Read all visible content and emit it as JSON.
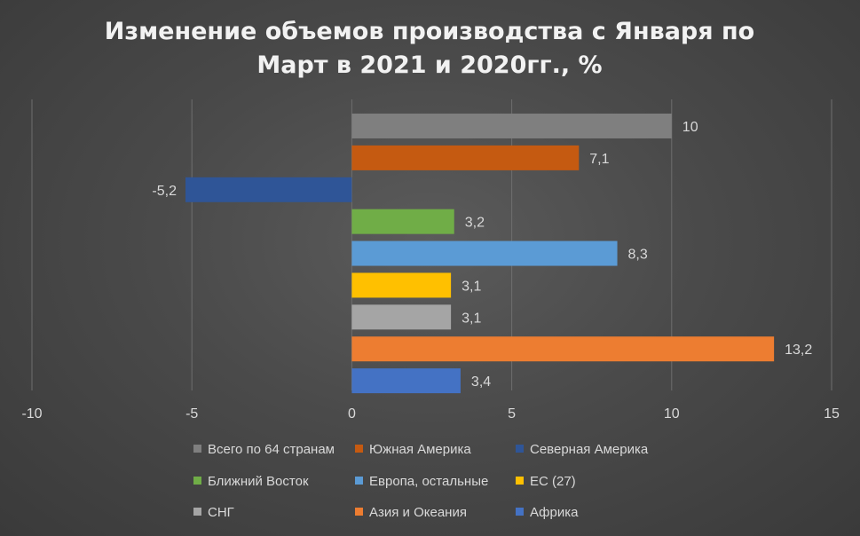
{
  "chart_data": {
    "type": "bar",
    "orientation": "horizontal",
    "title_lines": [
      "Изменение объемов производства  с Января по",
      "Март в 2021 и 2020гг., %"
    ],
    "xlabel": "",
    "ylabel": "",
    "xlim": [
      -10,
      15
    ],
    "xticks": [
      "-10",
      "-5",
      "0",
      "5",
      "10",
      "15"
    ],
    "grid": true,
    "legend_position": "bottom",
    "series": [
      {
        "name": "Всего по 64 странам",
        "value": 10,
        "label": "10",
        "color": "#7f7f7f"
      },
      {
        "name": "Южная Америка",
        "value": 7.1,
        "label": "7,1",
        "color": "#c55a11"
      },
      {
        "name": "Северная Америка",
        "value": -5.2,
        "label": "-5,2",
        "color": "#2f5597"
      },
      {
        "name": "Ближний Восток",
        "value": 3.2,
        "label": "3,2",
        "color": "#70ad47"
      },
      {
        "name": "Европа, остальные",
        "value": 8.3,
        "label": "8,3",
        "color": "#5b9bd5"
      },
      {
        "name": "ЕС (27)",
        "value": 3.1,
        "label": "3,1",
        "color": "#ffc000"
      },
      {
        "name": "СНГ",
        "value": 3.1,
        "label": "3,1",
        "color": "#a5a5a5"
      },
      {
        "name": "Азия и Океания",
        "value": 13.2,
        "label": "13,2",
        "color": "#ed7d31"
      },
      {
        "name": "Африка",
        "value": 3.4,
        "label": "3,4",
        "color": "#4472c4"
      }
    ]
  }
}
